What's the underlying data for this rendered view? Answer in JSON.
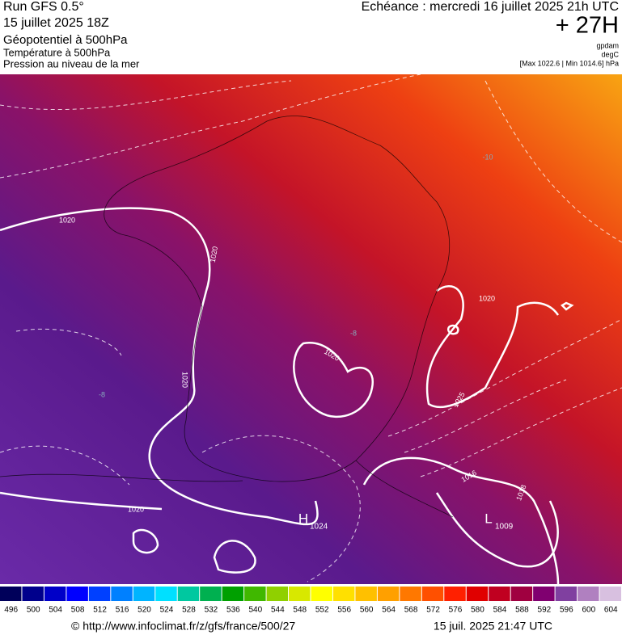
{
  "header": {
    "run": "Run GFS 0.5°",
    "date": "15 juillet 2025 18Z",
    "field_main": "Géopotentiel à 500hPa",
    "field_2": "Température à 500hPa",
    "field_3": "Pression au niveau de la mer",
    "echeance": "Echéance : mercredi 16 juillet 2025 21h UTC",
    "lead": "+ 27H",
    "unit_1": "gpdam",
    "unit_2": "degC",
    "range": "[Max 1022.6 | Min 1014.6] hPa"
  },
  "map": {
    "pressure_labels": [
      "1020",
      "1020",
      "1020",
      "1020",
      "1020",
      "1025",
      "1016",
      "1018",
      "1020"
    ],
    "temp_labels": [
      "-10",
      "-8",
      "-8"
    ],
    "centers": [
      {
        "symbol": "H",
        "value": "1024"
      },
      {
        "symbol": "L",
        "value": "1009"
      }
    ]
  },
  "scale": {
    "labels": [
      496,
      500,
      504,
      508,
      512,
      516,
      520,
      524,
      528,
      532,
      536,
      540,
      544,
      548,
      552,
      556,
      560,
      564,
      568,
      572,
      576,
      580,
      584,
      588,
      592,
      596,
      600,
      604
    ],
    "colors": [
      "#00005a",
      "#00008c",
      "#0000c8",
      "#0000ff",
      "#0040ff",
      "#0080ff",
      "#00b4ff",
      "#00e0ff",
      "#00c8a0",
      "#00b050",
      "#00a000",
      "#40b800",
      "#90d000",
      "#d8e800",
      "#ffff00",
      "#ffe000",
      "#ffc000",
      "#ffa000",
      "#ff7800",
      "#ff5000",
      "#ff2000",
      "#e00000",
      "#c00020",
      "#a00040",
      "#800070",
      "#8040a0",
      "#b080c0",
      "#d8c0e0"
    ]
  },
  "footer": {
    "url": "© http://www.infoclimat.fr/z/gfs/france/500/27",
    "timestamp": "15 juil. 2025 21:47 UTC"
  }
}
